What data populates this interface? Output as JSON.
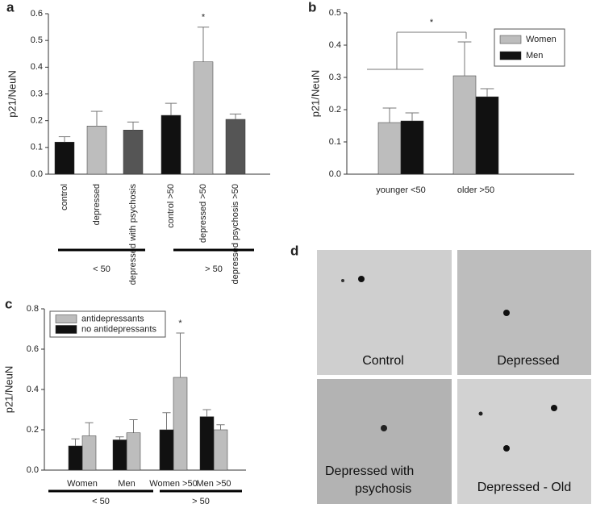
{
  "chart_data": [
    {
      "type": "bar",
      "panel_label": "a",
      "y_label": "p21/NeuN",
      "categories": [
        "control",
        "depressed",
        "depressed with psychosis",
        "control >50",
        "depressed >50",
        "depressed psychosis >50"
      ],
      "values": [
        0.12,
        0.18,
        0.165,
        0.22,
        0.42,
        0.205
      ],
      "errors": [
        0.02,
        0.055,
        0.03,
        0.045,
        0.13,
        0.02
      ],
      "colors": [
        "#111111",
        "#bdbdbd",
        "#555555",
        "#111111",
        "#bdbdbd",
        "#555555"
      ],
      "ylim": [
        0,
        0.6
      ],
      "yticks": [
        {
          "value": 0,
          "label": "0.0"
        },
        0.1,
        0.2,
        0.3,
        0.4,
        0.5,
        0.6
      ],
      "groups": [
        "< 50",
        "> 50"
      ],
      "annotations": [
        "*"
      ]
    },
    {
      "type": "bar",
      "panel_label": "b",
      "y_label": "p21/NeuN",
      "categories": [
        "younger <50",
        "older >50"
      ],
      "series": [
        {
          "name": "Women",
          "color": "#bdbdbd",
          "values": [
            0.16,
            0.305
          ],
          "errors": [
            0.045,
            0.105
          ]
        },
        {
          "name": "Men",
          "color": "#111111",
          "values": [
            0.165,
            0.24
          ],
          "errors": [
            0.025,
            0.025
          ]
        }
      ],
      "ylim": [
        0,
        0.5
      ],
      "yticks": [
        {
          "value": 0,
          "label": "0.0"
        },
        0.1,
        0.2,
        0.3,
        0.4,
        0.5
      ],
      "legend": "upper right",
      "annotations": [
        "*"
      ]
    },
    {
      "type": "bar",
      "panel_label": "c",
      "y_label": "p21/NeuN",
      "categories": [
        "Women",
        "Men",
        "Women >50",
        "Men >50"
      ],
      "series": [
        {
          "name": "antidepressants",
          "color": "#bdbdbd",
          "values": [
            0.17,
            0.185,
            0.46,
            0.2
          ],
          "errors": [
            0.065,
            0.065,
            0.22,
            0.025
          ]
        },
        {
          "name": "no antidepressants",
          "color": "#111111",
          "values": [
            0.12,
            0.15,
            0.2,
            0.265
          ],
          "errors": [
            0.035,
            0.015,
            0.085,
            0.035
          ]
        }
      ],
      "ylim": [
        0,
        0.8
      ],
      "yticks": [
        {
          "value": 0,
          "label": "0.0"
        },
        0.2,
        0.4,
        0.6,
        0.8
      ],
      "legend": "upper left",
      "groups": [
        "< 50",
        "> 50"
      ],
      "annotations": [
        "*"
      ]
    }
  ],
  "panel_d": {
    "panel_label": "d",
    "images": [
      {
        "lines": [
          "Control"
        ]
      },
      {
        "lines": [
          "Depressed"
        ]
      },
      {
        "lines": [
          "Depressed with",
          "psychosis"
        ]
      },
      {
        "lines": [
          "Depressed - Old"
        ]
      }
    ]
  }
}
